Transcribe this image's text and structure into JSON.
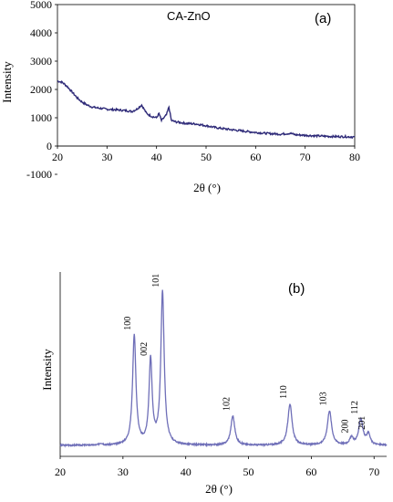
{
  "chart_data": [
    {
      "type": "line",
      "panel_label": "(a)",
      "title": "CA-ZnO",
      "ylabel": "Intensity",
      "xlabel": "2θ (°)",
      "xlim": [
        20,
        80
      ],
      "ylim": [
        -1000,
        5000
      ],
      "xticks": [
        "20",
        "30",
        "40",
        "50",
        "60",
        "70",
        "80"
      ],
      "yticks": [
        "-1000",
        "0",
        "1000",
        "2000",
        "3000",
        "4000",
        "5000"
      ],
      "grid": false,
      "series_color": "#2e2a78",
      "series": [
        {
          "x": [
            20,
            21,
            22,
            23,
            24,
            25,
            26,
            27,
            28,
            30,
            32,
            34,
            35,
            36,
            37,
            38,
            39,
            40,
            40.5,
            41,
            41.5,
            42,
            42.5,
            43,
            44,
            46,
            48,
            50,
            52,
            55,
            58,
            60,
            62,
            65,
            67,
            68,
            70,
            72,
            75,
            78,
            80
          ],
          "y": [
            2300,
            2250,
            2100,
            1900,
            1700,
            1550,
            1450,
            1380,
            1350,
            1300,
            1280,
            1250,
            1220,
            1300,
            1450,
            1150,
            1050,
            1000,
            1150,
            900,
            1000,
            1100,
            1380,
            900,
            850,
            800,
            780,
            720,
            650,
            580,
            520,
            480,
            450,
            420,
            450,
            400,
            380,
            360,
            340,
            330,
            320
          ]
        }
      ]
    },
    {
      "type": "line",
      "panel_label": "(b)",
      "ylabel": "Intensity",
      "xlabel": "2θ (°)",
      "xlim": [
        20,
        72
      ],
      "ylim": [
        0,
        1
      ],
      "xticks": [
        "20",
        "30",
        "40",
        "50",
        "60",
        "70"
      ],
      "grid": false,
      "series_color": "#6f6fb8",
      "peaks": [
        {
          "x": 31.8,
          "label": "100",
          "height": 0.64
        },
        {
          "x": 34.4,
          "label": "002",
          "height": 0.49
        },
        {
          "x": 36.3,
          "label": "101",
          "height": 0.89
        },
        {
          "x": 47.5,
          "label": "102",
          "height": 0.17
        },
        {
          "x": 56.6,
          "label": "110",
          "height": 0.24
        },
        {
          "x": 62.9,
          "label": "103",
          "height": 0.2
        },
        {
          "x": 66.4,
          "label": "200",
          "height": 0.04
        },
        {
          "x": 67.9,
          "label": "112",
          "height": 0.15
        },
        {
          "x": 69.1,
          "label": "201",
          "height": 0.06
        }
      ]
    }
  ]
}
